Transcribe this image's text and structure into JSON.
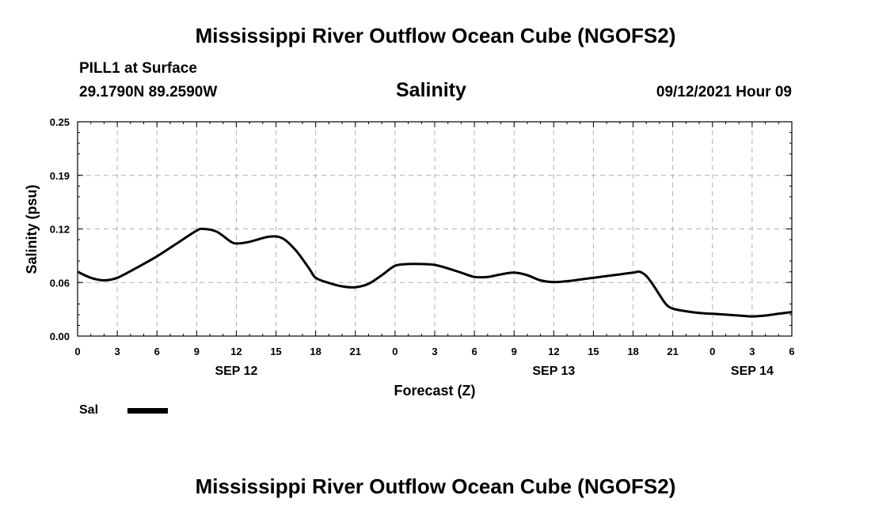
{
  "header": {
    "title": "Mississippi River Outflow Ocean Cube (NGOFS2)",
    "station": "PILL1 at Surface",
    "coords": "29.1790N  89.2590W",
    "variable": "Salinity",
    "datetime": "09/12/2021 Hour 09"
  },
  "footer": {
    "title": "Mississippi River Outflow Ocean Cube (NGOFS2)"
  },
  "legend": {
    "label": "Sal"
  },
  "colors": {
    "line": "#000000",
    "grid": "#b0b0b0"
  },
  "chart_data": {
    "type": "line",
    "title": "Salinity",
    "xlabel": "Forecast (Z)",
    "ylabel": "Salinity (psu)",
    "xlim": [
      0,
      54
    ],
    "ylim": [
      0.0,
      0.25
    ],
    "x_tick_values": [
      0,
      3,
      6,
      9,
      12,
      15,
      18,
      21,
      24,
      27,
      30,
      33,
      36,
      39,
      42,
      45,
      48,
      51,
      54
    ],
    "x_tick_labels": [
      "0",
      "3",
      "6",
      "9",
      "12",
      "15",
      "18",
      "21",
      "0",
      "3",
      "6",
      "9",
      "12",
      "15",
      "18",
      "21",
      "0",
      "3",
      "6"
    ],
    "y_tick_values": [
      0.0,
      0.0625,
      0.125,
      0.1875,
      0.25
    ],
    "y_tick_labels": [
      "0.00",
      "0.06",
      "0.12",
      "0.19",
      "0.25"
    ],
    "date_labels": [
      {
        "x": 12,
        "label": "SEP 12"
      },
      {
        "x": 36,
        "label": "SEP 13"
      },
      {
        "x": 51,
        "label": "SEP 14"
      }
    ],
    "grid": true,
    "series": [
      {
        "name": "Sal",
        "x": [
          0,
          1,
          2,
          3,
          4.5,
          6,
          7.5,
          9,
          9.5,
          10.5,
          11.5,
          12,
          13,
          14.5,
          15.5,
          16.5,
          17.5,
          18,
          19,
          20,
          21,
          22,
          23,
          24,
          25,
          26,
          27,
          28,
          29,
          30,
          31,
          32,
          33,
          34,
          35,
          36,
          37,
          38,
          39,
          40,
          41,
          42,
          42.5,
          43,
          43.5,
          44,
          44.5,
          45,
          46,
          47,
          48,
          49,
          50,
          51,
          52,
          53,
          54
        ],
        "y": [
          0.075,
          0.068,
          0.065,
          0.068,
          0.08,
          0.093,
          0.108,
          0.123,
          0.125,
          0.122,
          0.111,
          0.108,
          0.11,
          0.116,
          0.114,
          0.1,
          0.079,
          0.068,
          0.062,
          0.058,
          0.057,
          0.061,
          0.071,
          0.082,
          0.084,
          0.084,
          0.083,
          0.079,
          0.074,
          0.069,
          0.069,
          0.072,
          0.074,
          0.071,
          0.065,
          0.063,
          0.064,
          0.066,
          0.068,
          0.07,
          0.072,
          0.074,
          0.075,
          0.07,
          0.06,
          0.048,
          0.037,
          0.032,
          0.029,
          0.027,
          0.026,
          0.025,
          0.024,
          0.023,
          0.024,
          0.026,
          0.028
        ]
      }
    ]
  }
}
